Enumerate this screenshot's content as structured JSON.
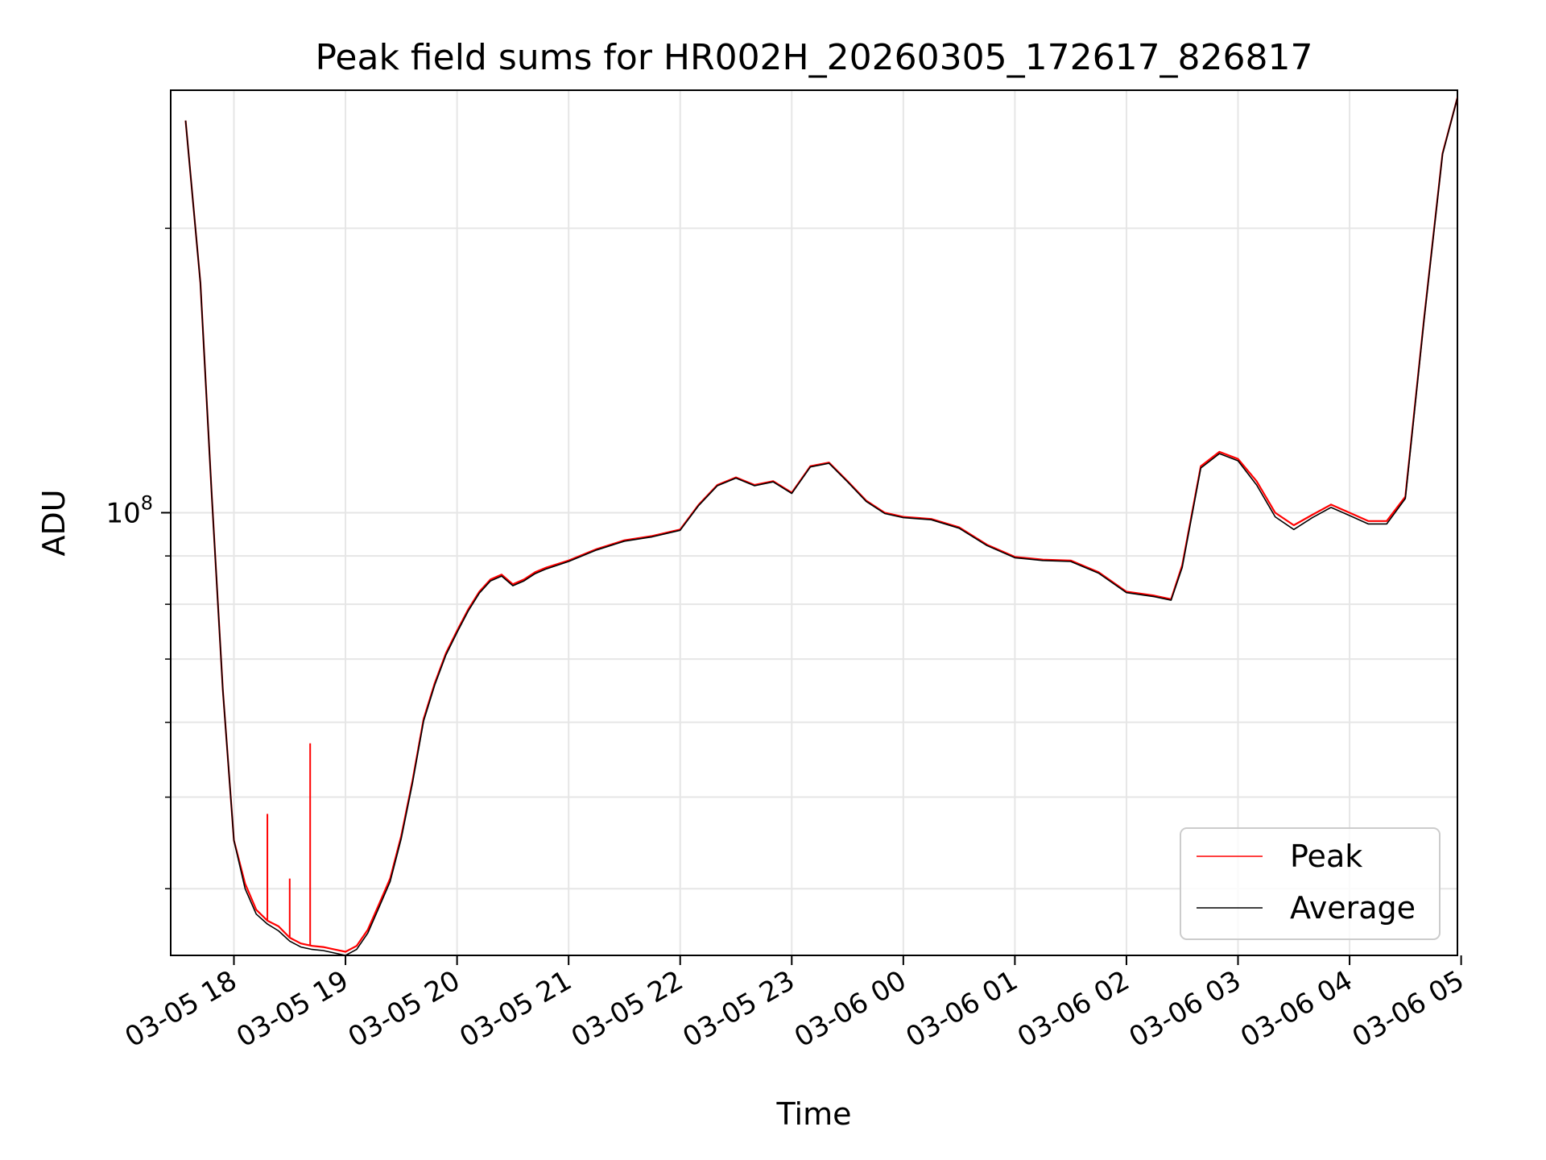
{
  "chart_data": {
    "type": "line",
    "title": "Peak field sums for HR002H_20260305_172617_826817",
    "xlabel": "Time",
    "ylabel": "ADU",
    "x_unit": "time",
    "x_range": [
      "03-05 17:26",
      "03-06 04:58"
    ],
    "ylim": [
      34000000,
      280000000
    ],
    "yscale": "log",
    "grid": true,
    "legend_position": "lower-right",
    "x_ticks": [
      "03-05 18",
      "03-05 19",
      "03-05 20",
      "03-05 21",
      "03-05 22",
      "03-05 23",
      "03-06 00",
      "03-06 01",
      "03-06 02",
      "03-06 03",
      "03-06 04",
      "03-06 05"
    ],
    "y_major_ticks": [
      {
        "value": 100000000,
        "label_base": "10",
        "label_exp": "8"
      }
    ],
    "y_minor_ticks": [
      40000000,
      50000000,
      60000000,
      70000000,
      80000000,
      90000000,
      200000000
    ],
    "series": [
      {
        "name": "Peak",
        "color": "#ff0000",
        "x": [
          "03-05 17:34",
          "03-05 17:42",
          "03-05 17:48",
          "03-05 17:54",
          "03-05 18:00",
          "03-05 18:06",
          "03-05 18:12",
          "03-05 18:18",
          "03-05 18:24",
          "03-05 18:30",
          "03-05 18:36",
          "03-05 18:42",
          "03-05 18:48",
          "03-05 18:54",
          "03-05 19:00",
          "03-05 19:06",
          "03-05 19:12",
          "03-05 19:18",
          "03-05 19:24",
          "03-05 19:30",
          "03-05 19:36",
          "03-05 19:42",
          "03-05 19:48",
          "03-05 19:54",
          "03-05 20:00",
          "03-05 20:06",
          "03-05 20:12",
          "03-05 20:18",
          "03-05 20:24",
          "03-05 20:30",
          "03-05 20:36",
          "03-05 20:42",
          "03-05 20:48",
          "03-05 21:00",
          "03-05 21:15",
          "03-05 21:30",
          "03-05 21:45",
          "03-05 22:00",
          "03-05 22:10",
          "03-05 22:20",
          "03-05 22:30",
          "03-05 22:40",
          "03-05 22:50",
          "03-05 23:00",
          "03-05 23:10",
          "03-05 23:20",
          "03-05 23:30",
          "03-05 23:40",
          "03-05 23:50",
          "03-06 00:00",
          "03-06 00:15",
          "03-06 00:30",
          "03-06 00:45",
          "03-06 01:00",
          "03-06 01:15",
          "03-06 01:30",
          "03-06 01:45",
          "03-06 02:00",
          "03-06 02:15",
          "03-06 02:24",
          "03-06 02:30",
          "03-06 02:40",
          "03-06 02:50",
          "03-06 03:00",
          "03-06 03:10",
          "03-06 03:20",
          "03-06 03:30",
          "03-06 03:40",
          "03-06 03:50",
          "03-06 04:00",
          "03-06 04:10",
          "03-06 04:20",
          "03-06 04:30",
          "03-06 04:40",
          "03-06 04:50",
          "03-06 04:58"
        ],
        "values": [
          260000000,
          175000000,
          105000000,
          65000000,
          45000000,
          40500000,
          38000000,
          37000000,
          36500000,
          35500000,
          35000000,
          34800000,
          34700000,
          34500000,
          34300000,
          34800000,
          36200000,
          38500000,
          41000000,
          45500000,
          52000000,
          60500000,
          66000000,
          71000000,
          75000000,
          79000000,
          82500000,
          85000000,
          86000000,
          84000000,
          85000000,
          86500000,
          87500000,
          89000000,
          91500000,
          93500000,
          94500000,
          96000000,
          102000000,
          107000000,
          109000000,
          107000000,
          108000000,
          105000000,
          112000000,
          113000000,
          108000000,
          103000000,
          100000000,
          99000000,
          98500000,
          96500000,
          92500000,
          89800000,
          89200000,
          89000000,
          86500000,
          82500000,
          81700000,
          81000000,
          88000000,
          112000000,
          116000000,
          114000000,
          108000000,
          100000000,
          97000000,
          99500000,
          102000000,
          100000000,
          98000000,
          98000000,
          104000000,
          160000000,
          240000000,
          275000000
        ],
        "spikes": [
          {
            "x": "03-05 18:18",
            "value": 48000000
          },
          {
            "x": "03-05 18:30",
            "value": 41000000
          },
          {
            "x": "03-05 18:41",
            "value": 57000000
          }
        ]
      },
      {
        "name": "Average",
        "color": "#000000",
        "x": [
          "03-05 17:34",
          "03-05 17:42",
          "03-05 17:48",
          "03-05 17:54",
          "03-05 18:00",
          "03-05 18:06",
          "03-05 18:12",
          "03-05 18:18",
          "03-05 18:24",
          "03-05 18:30",
          "03-05 18:36",
          "03-05 18:42",
          "03-05 18:48",
          "03-05 18:54",
          "03-05 19:00",
          "03-05 19:06",
          "03-05 19:12",
          "03-05 19:18",
          "03-05 19:24",
          "03-05 19:30",
          "03-05 19:36",
          "03-05 19:42",
          "03-05 19:48",
          "03-05 19:54",
          "03-05 20:00",
          "03-05 20:06",
          "03-05 20:12",
          "03-05 20:18",
          "03-05 20:24",
          "03-05 20:30",
          "03-05 20:36",
          "03-05 20:42",
          "03-05 20:48",
          "03-05 21:00",
          "03-05 21:15",
          "03-05 21:30",
          "03-05 21:45",
          "03-05 22:00",
          "03-05 22:10",
          "03-05 22:20",
          "03-05 22:30",
          "03-05 22:40",
          "03-05 22:50",
          "03-05 23:00",
          "03-05 23:10",
          "03-05 23:20",
          "03-05 23:30",
          "03-05 23:40",
          "03-05 23:50",
          "03-06 00:00",
          "03-06 00:15",
          "03-06 00:30",
          "03-06 00:45",
          "03-06 01:00",
          "03-06 01:15",
          "03-06 01:30",
          "03-06 01:45",
          "03-06 02:00",
          "03-06 02:15",
          "03-06 02:24",
          "03-06 02:30",
          "03-06 02:40",
          "03-06 02:50",
          "03-06 03:00",
          "03-06 03:10",
          "03-06 03:20",
          "03-06 03:30",
          "03-06 03:40",
          "03-06 03:50",
          "03-06 04:00",
          "03-06 04:10",
          "03-06 04:20",
          "03-06 04:30",
          "03-06 04:40",
          "03-06 04:50",
          "03-06 04:58"
        ],
        "values": [
          260000000,
          175000000,
          105000000,
          65000000,
          45000000,
          40000000,
          37600000,
          36700000,
          36100000,
          35200000,
          34700000,
          34500000,
          34400000,
          34200000,
          34000000,
          34500000,
          35900000,
          38200000,
          40700000,
          45200000,
          51700000,
          60200000,
          65700000,
          70700000,
          74700000,
          78700000,
          82200000,
          84700000,
          85700000,
          83700000,
          84700000,
          86200000,
          87200000,
          88800000,
          91300000,
          93300000,
          94300000,
          95800000,
          101800000,
          106800000,
          108800000,
          106800000,
          107800000,
          104800000,
          111800000,
          112800000,
          107800000,
          102800000,
          99800000,
          98800000,
          98300000,
          96300000,
          92300000,
          89600000,
          89000000,
          88800000,
          86300000,
          82300000,
          81500000,
          80800000,
          87500000,
          111500000,
          115500000,
          113500000,
          107000000,
          99000000,
          96000000,
          98800000,
          101300000,
          99300000,
          97300000,
          97300000,
          103500000,
          159500000,
          239500000,
          275000000
        ]
      }
    ]
  }
}
